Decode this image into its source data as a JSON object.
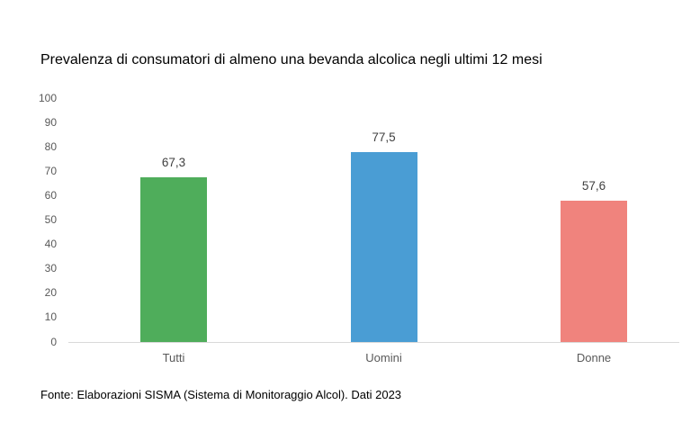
{
  "chart_data": {
    "type": "bar",
    "title": "Prevalenza di consumatori di almeno una bevanda alcolica negli ultimi 12 mesi",
    "categories": [
      "Tutti",
      "Uomini",
      "Donne"
    ],
    "values": [
      67.3,
      77.5,
      57.6
    ],
    "value_labels": [
      "67,3",
      "77,5",
      "57,6"
    ],
    "bar_colors": [
      "#4fad5b",
      "#4a9dd4",
      "#f0837d"
    ],
    "xlabel": "",
    "ylabel": "",
    "ylim": [
      0,
      100
    ],
    "yticks": [
      0,
      10,
      20,
      30,
      40,
      50,
      60,
      70,
      80,
      90,
      100
    ],
    "grid": false,
    "legend_position": "none",
    "source_note": "Fonte: Elaborazioni SISMA (Sistema di Monitoraggio Alcol). Dati 2023"
  },
  "colors": {
    "axis_label": "#595959",
    "value_label": "#404040",
    "baseline": "#d9d9d9",
    "title_text": "#000000"
  }
}
